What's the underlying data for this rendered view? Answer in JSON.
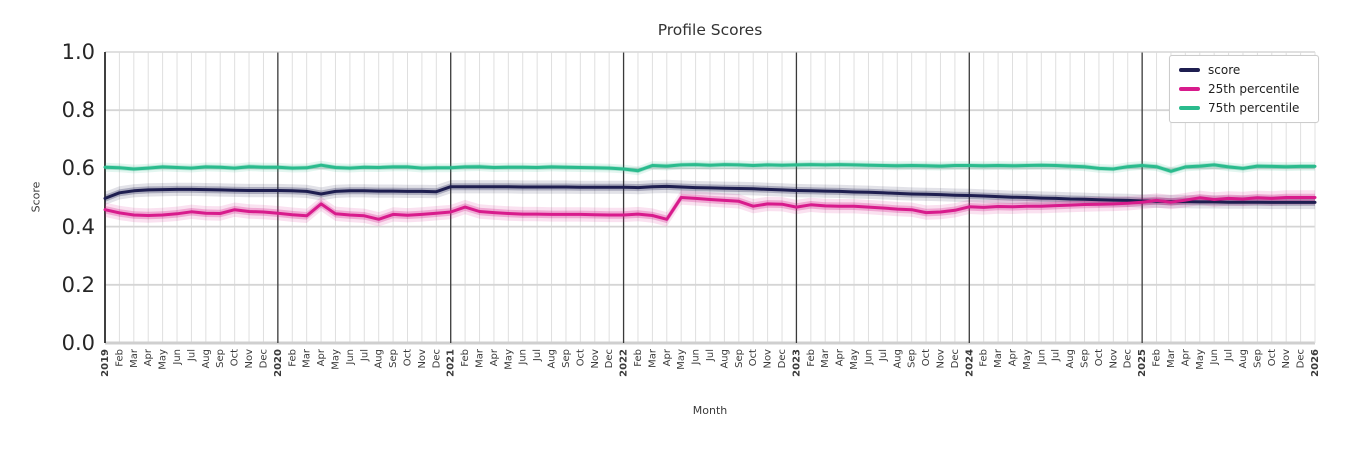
{
  "chart": {
    "title": "Profile Scores",
    "xlabel": "Month",
    "ylabel": "Score"
  },
  "chart_data": {
    "type": "line",
    "title": "Profile Scores",
    "xlabel": "Month",
    "ylabel": "Score",
    "ylim": [
      0.0,
      1.0
    ],
    "yticks": [
      0.0,
      0.2,
      0.4,
      0.6,
      0.8,
      1.0
    ],
    "ytick_labels": [
      "0.0",
      "0.2",
      "0.4",
      "0.6",
      "0.8",
      "1.0"
    ],
    "grid": true,
    "legend_position": "upper right",
    "x_tick_labels": [
      "2019",
      "Feb",
      "Mar",
      "Apr",
      "May",
      "Jun",
      "Jul",
      "Aug",
      "Sep",
      "Oct",
      "Nov",
      "Dec",
      "2020",
      "Feb",
      "Mar",
      "Apr",
      "May",
      "Jun",
      "Jul",
      "Aug",
      "Sep",
      "Oct",
      "Nov",
      "Dec",
      "2021",
      "Feb",
      "Mar",
      "Apr",
      "May",
      "Jun",
      "Jul",
      "Aug",
      "Sep",
      "Oct",
      "Nov",
      "Dec",
      "2022",
      "Feb",
      "Mar",
      "Apr",
      "May",
      "Jun",
      "Jul",
      "Aug",
      "Sep",
      "Oct",
      "Nov",
      "Dec",
      "2023",
      "Feb",
      "Mar",
      "Apr",
      "May",
      "Jun",
      "Jul",
      "Aug",
      "Sep",
      "Oct",
      "Nov",
      "Dec",
      "2024",
      "Feb",
      "Mar",
      "Apr",
      "May",
      "Jun",
      "Jul",
      "Aug",
      "Sep",
      "Oct",
      "Nov",
      "Dec",
      "2025",
      "Feb",
      "Mar",
      "Apr",
      "May",
      "Jun",
      "Jul",
      "Aug",
      "Sep",
      "Oct",
      "Nov",
      "Dec",
      "2026"
    ],
    "series": [
      {
        "name": "score",
        "color": "#1e1e50",
        "band_halfwidth": 0.012,
        "values": [
          0.497,
          0.516,
          0.523,
          0.526,
          0.527,
          0.528,
          0.528,
          0.527,
          0.526,
          0.525,
          0.524,
          0.524,
          0.524,
          0.523,
          0.521,
          0.512,
          0.521,
          0.523,
          0.523,
          0.522,
          0.522,
          0.521,
          0.521,
          0.52,
          0.537,
          0.537,
          0.537,
          0.537,
          0.537,
          0.536,
          0.536,
          0.536,
          0.536,
          0.535,
          0.535,
          0.535,
          0.535,
          0.534,
          0.537,
          0.538,
          0.536,
          0.534,
          0.533,
          0.532,
          0.531,
          0.53,
          0.528,
          0.526,
          0.524,
          0.523,
          0.522,
          0.521,
          0.519,
          0.518,
          0.516,
          0.514,
          0.512,
          0.511,
          0.51,
          0.508,
          0.507,
          0.505,
          0.503,
          0.501,
          0.5,
          0.498,
          0.497,
          0.495,
          0.494,
          0.492,
          0.491,
          0.49,
          0.488,
          0.487,
          0.486,
          0.486,
          0.485,
          0.485,
          0.484,
          0.484,
          0.484,
          0.483,
          0.483,
          0.483,
          0.483
        ]
      },
      {
        "name": "25th percentile",
        "color": "#d81b8c",
        "band_halfwidth": 0.013,
        "values": [
          0.458,
          0.447,
          0.44,
          0.438,
          0.44,
          0.444,
          0.451,
          0.446,
          0.445,
          0.458,
          0.452,
          0.45,
          0.446,
          0.441,
          0.437,
          0.478,
          0.444,
          0.44,
          0.437,
          0.425,
          0.442,
          0.439,
          0.442,
          0.446,
          0.45,
          0.467,
          0.452,
          0.448,
          0.445,
          0.443,
          0.443,
          0.442,
          0.442,
          0.442,
          0.441,
          0.44,
          0.44,
          0.443,
          0.438,
          0.425,
          0.5,
          0.497,
          0.493,
          0.49,
          0.487,
          0.47,
          0.478,
          0.477,
          0.467,
          0.475,
          0.471,
          0.47,
          0.47,
          0.467,
          0.464,
          0.46,
          0.458,
          0.448,
          0.45,
          0.456,
          0.468,
          0.466,
          0.469,
          0.468,
          0.47,
          0.47,
          0.472,
          0.474,
          0.476,
          0.477,
          0.478,
          0.48,
          0.484,
          0.49,
          0.484,
          0.491,
          0.499,
          0.493,
          0.497,
          0.495,
          0.499,
          0.497,
          0.5,
          0.5,
          0.5
        ]
      },
      {
        "name": "75th percentile",
        "color": "#2abb8d",
        "band_halfwidth": 0.008,
        "values": [
          0.604,
          0.602,
          0.598,
          0.601,
          0.605,
          0.603,
          0.601,
          0.605,
          0.604,
          0.601,
          0.606,
          0.604,
          0.604,
          0.601,
          0.602,
          0.611,
          0.603,
          0.601,
          0.604,
          0.603,
          0.605,
          0.605,
          0.601,
          0.602,
          0.602,
          0.605,
          0.606,
          0.603,
          0.604,
          0.604,
          0.603,
          0.605,
          0.604,
          0.603,
          0.602,
          0.601,
          0.598,
          0.592,
          0.61,
          0.608,
          0.612,
          0.613,
          0.611,
          0.613,
          0.612,
          0.61,
          0.612,
          0.611,
          0.612,
          0.613,
          0.612,
          0.613,
          0.612,
          0.611,
          0.61,
          0.609,
          0.61,
          0.609,
          0.608,
          0.61,
          0.61,
          0.609,
          0.61,
          0.609,
          0.61,
          0.611,
          0.61,
          0.608,
          0.606,
          0.6,
          0.598,
          0.606,
          0.61,
          0.606,
          0.59,
          0.605,
          0.608,
          0.612,
          0.605,
          0.6,
          0.608,
          0.607,
          0.606,
          0.607,
          0.607
        ]
      }
    ],
    "style": {
      "grid_minor_color": "#dfdfdf",
      "grid_major_color": "#d5d5d5",
      "year_line_color": "#3a3a3a",
      "axis_spine_color": "#2b2b2b",
      "bottom_line_color": "#cfcfcf",
      "tick_label_color": "#3a3a3a"
    }
  }
}
